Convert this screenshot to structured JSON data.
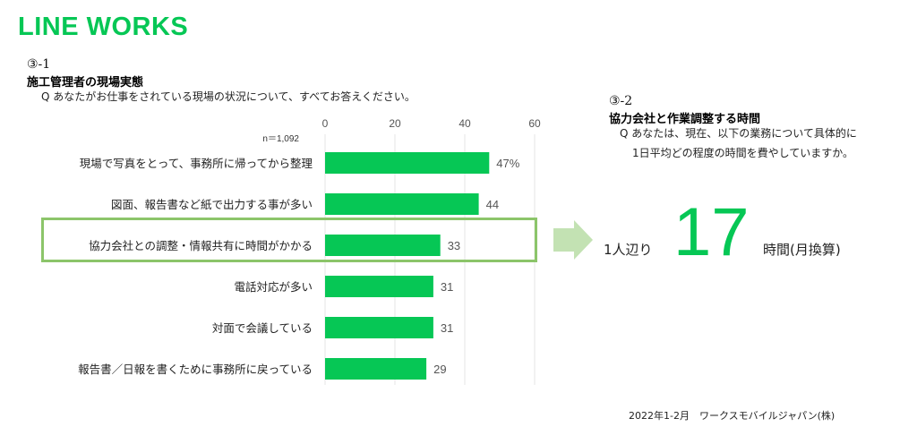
{
  "brand": "LINE WORKS",
  "left_panel": {
    "number": "③-1",
    "title": "施工管理者の現場実態",
    "question": "Q あなたがお仕事をされている現場の状況について、すべてお答えください。"
  },
  "right_panel": {
    "number": "③-2",
    "title": "協力会社と作業調整する時間",
    "question_line1": "Q あなたは、現在、以下の業務について具体的に",
    "question_line2": "1日平均どの程度の時間を費やしていますか。",
    "prefix": "1人辺り",
    "value": "17",
    "suffix": "時間(月換算)"
  },
  "footer": "2022年1-2月　ワークスモバイルジャパン(株)",
  "colors": {
    "bar": "#06c755",
    "highlight": "#8cc56a",
    "arrow": "#c3e2b3"
  },
  "chart_data": {
    "type": "bar",
    "orientation": "horizontal",
    "n_label": "n＝1,092",
    "categories": [
      "現場で写真をとって、事務所に帰ってから整理",
      "図面、報告書など紙で出力する事が多い",
      "協力会社との調整・情報共有に時間がかかる",
      "電話対応が多い",
      "対面で会議している",
      "報告書／日報を書くために事務所に戻っている"
    ],
    "values": [
      47,
      44,
      33,
      31,
      31,
      29
    ],
    "value_labels": [
      "47%",
      "44",
      "33",
      "31",
      "31",
      "29"
    ],
    "ticks": [
      "0",
      "20",
      "40",
      "60"
    ],
    "xlim": [
      0,
      60
    ],
    "highlighted_category": "協力会社との調整・情報共有に時間がかかる"
  }
}
